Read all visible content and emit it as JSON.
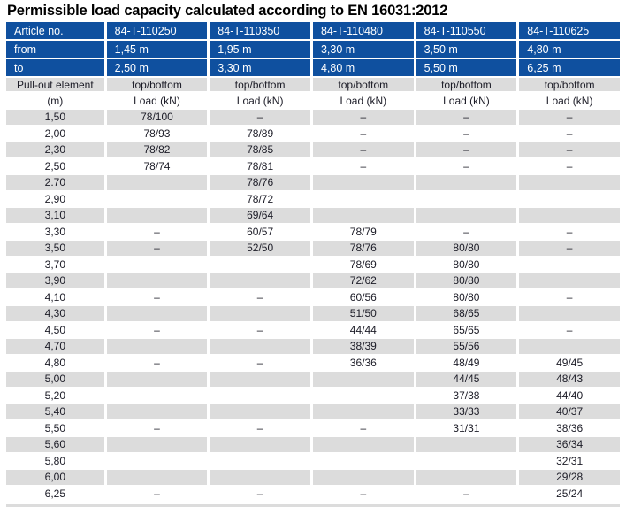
{
  "title": "Permissible load capacity calculated according to EN 16031:2012",
  "header": {
    "article_label": "Article no.",
    "from_label": "from",
    "to_label": "to",
    "articles": [
      "84-T-110250",
      "84-T-110350",
      "84-T-110480",
      "84-T-110550",
      "84-T-110625"
    ],
    "from_values": [
      "1,45 m",
      "1,95 m",
      "3,30 m",
      "3,50 m",
      "4,80 m"
    ],
    "to_values": [
      "2,50 m",
      "3,30 m",
      "4,80 m",
      "5,50 m",
      "6,25 m"
    ],
    "pullout_label": "Pull-out element",
    "pullout_unit": "(m)",
    "col_sub_label": "top/bottom",
    "col_sub_unit": "Load (kN)"
  },
  "rows": [
    {
      "m": "1,50",
      "loads": [
        "78/100",
        "–",
        "–",
        "–",
        "–"
      ]
    },
    {
      "m": "2,00",
      "loads": [
        "78/93",
        "78/89",
        "–",
        "–",
        "–"
      ]
    },
    {
      "m": "2,30",
      "loads": [
        "78/82",
        "78/85",
        "–",
        "–",
        "–"
      ]
    },
    {
      "m": "2,50",
      "loads": [
        "78/74",
        "78/81",
        "–",
        "–",
        "–"
      ]
    },
    {
      "m": "2.70",
      "loads": [
        "",
        "78/76",
        "",
        "",
        ""
      ]
    },
    {
      "m": "2,90",
      "loads": [
        "",
        "78/72",
        "",
        "",
        ""
      ]
    },
    {
      "m": "3,10",
      "loads": [
        "",
        "69/64",
        "",
        "",
        ""
      ]
    },
    {
      "m": "3,30",
      "loads": [
        "–",
        "60/57",
        "78/79",
        "–",
        "–"
      ]
    },
    {
      "m": "3,50",
      "loads": [
        "–",
        "52/50",
        "78/76",
        "80/80",
        "–"
      ]
    },
    {
      "m": "3,70",
      "loads": [
        "",
        "",
        "78/69",
        "80/80",
        ""
      ]
    },
    {
      "m": "3,90",
      "loads": [
        "",
        "",
        "72/62",
        "80/80",
        ""
      ]
    },
    {
      "m": "4,10",
      "loads": [
        "–",
        "–",
        "60/56",
        "80/80",
        "–"
      ]
    },
    {
      "m": "4,30",
      "loads": [
        "",
        "",
        "51/50",
        "68/65",
        ""
      ]
    },
    {
      "m": "4,50",
      "loads": [
        "–",
        "–",
        "44/44",
        "65/65",
        "–"
      ]
    },
    {
      "m": "4,70",
      "loads": [
        "",
        "",
        "38/39",
        "55/56",
        ""
      ]
    },
    {
      "m": "4,80",
      "loads": [
        "–",
        "–",
        "36/36",
        "48/49",
        "49/45"
      ]
    },
    {
      "m": "5,00",
      "loads": [
        "",
        "",
        "",
        "44/45",
        "48/43"
      ]
    },
    {
      "m": "5,20",
      "loads": [
        "",
        "",
        "",
        "37/38",
        "44/40"
      ]
    },
    {
      "m": "5,40",
      "loads": [
        "",
        "",
        "",
        "33/33",
        "40/37"
      ]
    },
    {
      "m": "5,50",
      "loads": [
        "–",
        "–",
        "–",
        "31/31",
        "38/36"
      ]
    },
    {
      "m": "5,60",
      "loads": [
        "",
        "",
        "",
        "",
        "36/34"
      ]
    },
    {
      "m": "5,80",
      "loads": [
        "",
        "",
        "",
        "",
        "32/31"
      ]
    },
    {
      "m": "6,00",
      "loads": [
        "",
        "",
        "",
        "",
        "29/28"
      ]
    },
    {
      "m": "6,25",
      "loads": [
        "–",
        "–",
        "–",
        "–",
        "25/24"
      ]
    }
  ],
  "colors": {
    "header_blue": "#0f509f",
    "stripe_gray": "#dcdcdc",
    "text_dark": "#1b1b26"
  }
}
